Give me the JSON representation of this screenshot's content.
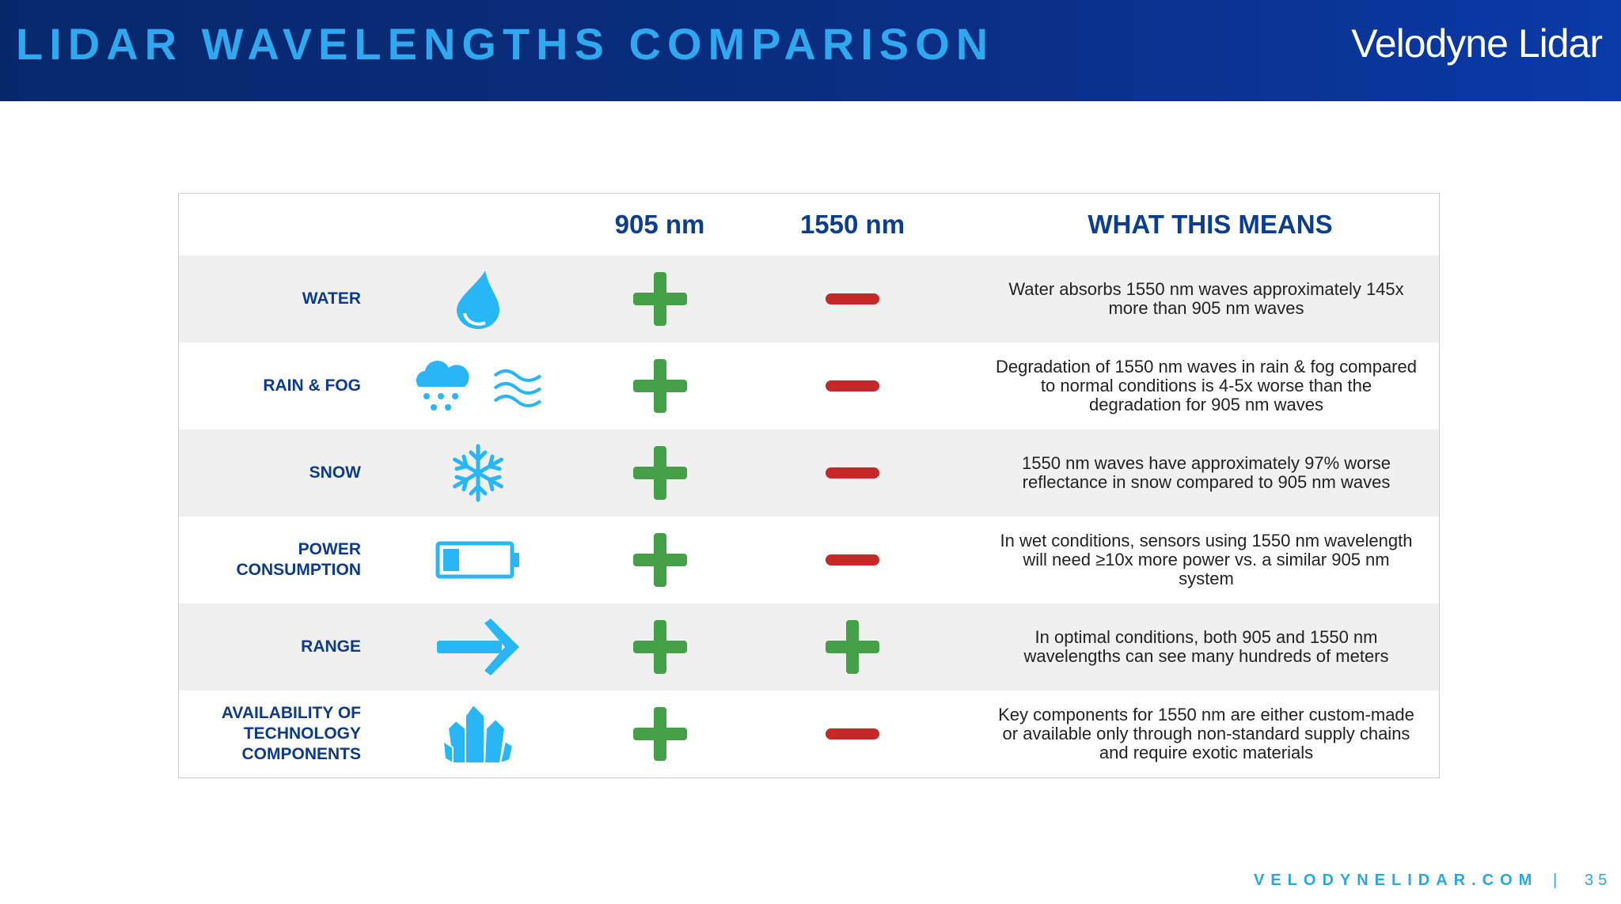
{
  "header": {
    "title": "LIDAR WAVELENGTHS COMPARISON",
    "logo": "Velodyne Lidar"
  },
  "table": {
    "columns": [
      "905 nm",
      "1550 nm",
      "WHAT THIS MEANS"
    ],
    "rows": [
      {
        "label": "WATER",
        "means": "Water absorbs 1550 nm waves approximately 145x more than 905 nm waves"
      },
      {
        "label": "RAIN & FOG",
        "means": "Degradation of 1550 nm waves in rain & fog compared to normal conditions is 4-5x worse than the degradation for 905 nm waves"
      },
      {
        "label": "SNOW",
        "means": "1550 nm waves have approximately 97% worse reflectance in snow compared to 905 nm waves"
      },
      {
        "label": "POWER CONSUMPTION",
        "means": "In wet conditions, sensors using 1550 nm wavelength will need ≥10x more power vs. a similar 905 nm system"
      },
      {
        "label": "RANGE",
        "means": "In optimal conditions, both 905 and 1550 nm wavelengths can see many hundreds of meters"
      },
      {
        "label": "AVAILABILITY OF TECHNOLOGY COMPONENTS",
        "means": "Key components for 1550 nm are either custom-made or available only through non-standard supply chains and require exotic materials"
      }
    ]
  },
  "footer": {
    "site": "VELODYNELIDAR.COM",
    "separator": "|",
    "page": "35"
  }
}
